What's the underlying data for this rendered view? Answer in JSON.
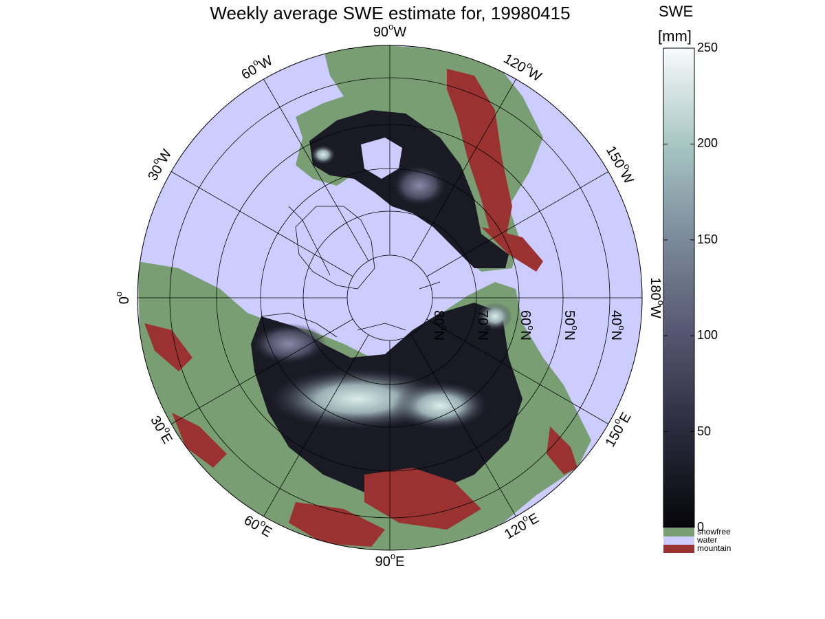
{
  "figure": {
    "title": "Weekly average SWE estimate for, 19980415",
    "colorbar": {
      "title_line1": "SWE",
      "title_line2": "[mm]",
      "ticks": [
        "250",
        "200",
        "150",
        "100",
        "50",
        "0"
      ],
      "tick_values": [
        250,
        200,
        150,
        100,
        50,
        0
      ],
      "range": [
        0,
        250
      ],
      "gradient_colors": [
        "#06060a",
        "#2a2a3c",
        "#555570",
        "#7a8a9a",
        "#a8c6c4",
        "#f8fbfb"
      ]
    },
    "legend": [
      {
        "label": "snowfree",
        "color": "#7a9e74"
      },
      {
        "label": "water",
        "color": "#ccccff"
      },
      {
        "label": "mountain",
        "color": "#9a3232"
      }
    ]
  },
  "map": {
    "projection": "polar-stereographic-north",
    "ocean_color": "#ccccff",
    "land_color": "#7a9e74",
    "mountain_color": "#9a3232",
    "meridian_labels": [
      {
        "text": "90°W",
        "sup": "o",
        "base": "90",
        "dir": "W"
      },
      {
        "text": "120°W",
        "sup": "o",
        "base": "120",
        "dir": "W"
      },
      {
        "text": "150°W",
        "sup": "o",
        "base": "150",
        "dir": "W"
      },
      {
        "text": "180°W",
        "sup": "o",
        "base": "180",
        "dir": "W"
      },
      {
        "text": "150°E",
        "sup": "o",
        "base": "150",
        "dir": "E"
      },
      {
        "text": "120°E",
        "sup": "o",
        "base": "120",
        "dir": "E"
      },
      {
        "text": "90°E",
        "sup": "o",
        "base": "90",
        "dir": "E"
      },
      {
        "text": "60°E",
        "sup": "o",
        "base": "60",
        "dir": "E"
      },
      {
        "text": "30°E",
        "sup": "o",
        "base": "30",
        "dir": "E"
      },
      {
        "text": "0°",
        "sup": "o",
        "base": "0",
        "dir": ""
      },
      {
        "text": "30°W",
        "sup": "o",
        "base": "30",
        "dir": "W"
      },
      {
        "text": "60°W",
        "sup": "o",
        "base": "60",
        "dir": "W"
      }
    ],
    "parallel_labels": [
      {
        "base": "80",
        "dir": "N"
      },
      {
        "base": "70",
        "dir": "N"
      },
      {
        "base": "60",
        "dir": "N"
      },
      {
        "base": "50",
        "dir": "N"
      },
      {
        "base": "40",
        "dir": "N"
      }
    ]
  }
}
